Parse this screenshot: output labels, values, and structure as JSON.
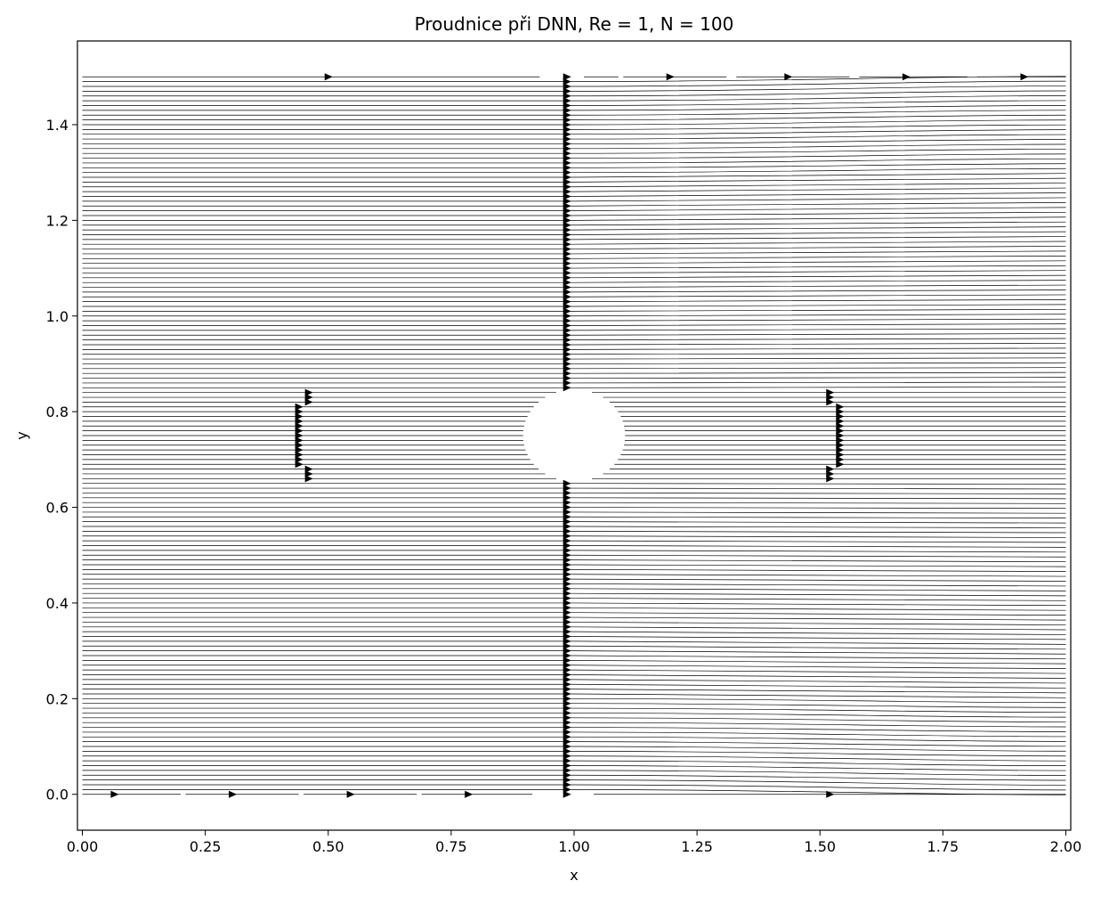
{
  "chart_data": {
    "type": "streamplot",
    "title": "Proudnice při DNN, Re = 1, N = 100",
    "xlabel": "x",
    "ylabel": "y",
    "xlim": [
      -0.01,
      2.01
    ],
    "ylim": [
      -0.075,
      1.575
    ],
    "x_ticks": [
      0.0,
      0.25,
      0.5,
      0.75,
      1.0,
      1.25,
      1.5,
      1.75,
      2.0
    ],
    "x_tick_labels": [
      "0.00",
      "0.25",
      "0.50",
      "0.75",
      "1.00",
      "1.25",
      "1.50",
      "1.75",
      "2.00"
    ],
    "y_ticks": [
      0.0,
      0.2,
      0.4,
      0.6,
      0.8,
      1.0,
      1.2,
      1.4
    ],
    "y_tick_labels": [
      "0.0",
      "0.2",
      "0.4",
      "0.6",
      "0.8",
      "1.0",
      "1.2",
      "1.4"
    ],
    "domain": {
      "x": [
        0.0,
        2.0
      ],
      "y": [
        0.0,
        1.5
      ]
    },
    "obstacle": {
      "shape": "circle",
      "center": [
        1.0,
        0.75
      ],
      "radius": 0.075
    },
    "streamlines": {
      "count": 150,
      "y_range": [
        0.0,
        1.5
      ],
      "direction": "left-to-right",
      "arrow_column_x": 0.985,
      "near_obstacle_arrow_columns_x": [
        0.44,
        1.54
      ]
    },
    "grid": false,
    "legend": "none",
    "colors": {
      "lines": "#000000",
      "background": "#ffffff",
      "axes": "#000000"
    }
  }
}
